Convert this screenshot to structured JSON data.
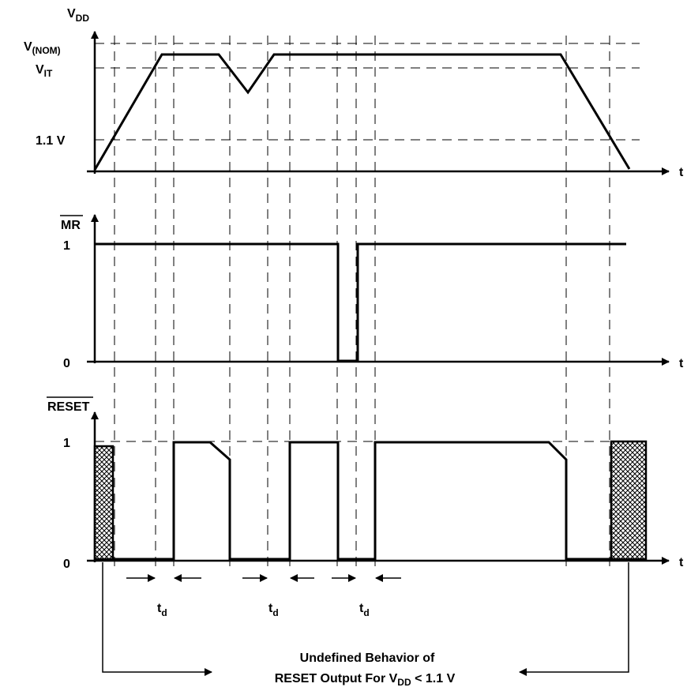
{
  "vdd_panel": {
    "y_label_main": "V",
    "y_label_sub": "DD",
    "vnom_main": "V",
    "vnom_sub": "(NOM)",
    "vit_main": "V",
    "vit_sub": "IT",
    "v11_label": "1.1 V",
    "t_label": "t"
  },
  "mr_panel": {
    "y_label": "MR",
    "level_1": "1",
    "level_0": "0",
    "t_label": "t"
  },
  "reset_panel": {
    "y_label": "RESET",
    "level_1": "1",
    "level_0": "0",
    "t_label": "t"
  },
  "delays": [
    {
      "main": "t",
      "sub": "d"
    },
    {
      "main": "t",
      "sub": "d"
    },
    {
      "main": "t",
      "sub": "d"
    }
  ],
  "note": {
    "line1": "Undefined Behavior of",
    "line2_pre": "RESET Output For V",
    "line2_sub": "DD",
    "line2_post": " < 1.1 V"
  }
}
